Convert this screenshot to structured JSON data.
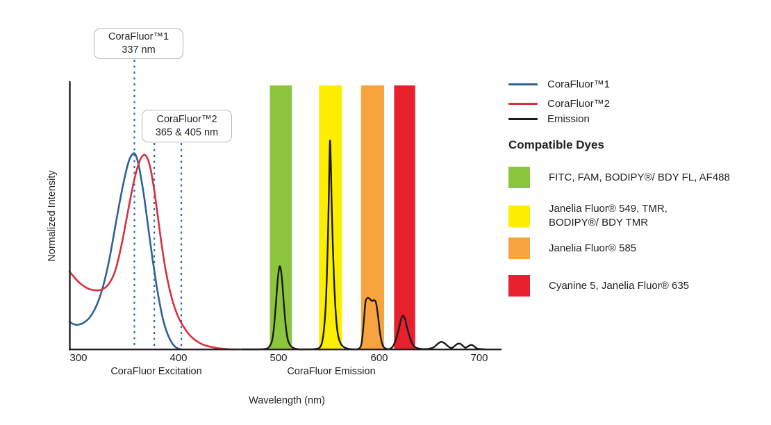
{
  "chart_data": {
    "type": "line",
    "title": "",
    "xlabel": "Wavelength (nm)",
    "ylabel": "Normalized Intensity",
    "xlim": [
      300,
      700
    ],
    "ylim": [
      0,
      1
    ],
    "grid": false,
    "x_ticks": [
      300,
      400,
      500,
      600,
      700
    ],
    "x_tick_labels": [
      "300",
      "400",
      "500",
      "600",
      "700"
    ],
    "x_section_labels": [
      {
        "label": "CoraFluor Excitation"
      },
      {
        "label": "CoraFluor Emission"
      }
    ],
    "annotations": [
      {
        "line1": "CoraFluor™1",
        "line2": "337 nm"
      },
      {
        "line1": "CoraFluor™2",
        "line2": "365 & 405 nm"
      }
    ],
    "dashed_guides": [
      {
        "nm": 355.8,
        "label_ref": "CoraFluor™1 337 nm"
      },
      {
        "nm": 375.6,
        "label_ref": "CoraFluor™2 365 nm"
      },
      {
        "nm": 402.6,
        "label_ref": "CoraFluor™2 405 nm"
      }
    ],
    "bands": [
      {
        "name": "FITC, FAM, BODIPY/ BDY FL, AF488",
        "from_nm": 491,
        "to_nm": 513,
        "color": "#8cc63f"
      },
      {
        "name": "Janelia Fluor 549, TMR, BODIPY/ BDY TMR",
        "from_nm": 540,
        "to_nm": 563,
        "color": "#fdee00"
      },
      {
        "name": "Janelia Fluor 585",
        "from_nm": 582,
        "to_nm": 605,
        "color": "#f7a440"
      },
      {
        "name": "Cyanine 5, Janelia Fluor 635",
        "from_nm": 615,
        "to_nm": 636,
        "color": "#e8202e"
      }
    ],
    "series": [
      {
        "name": "CoraFluor™1",
        "color": "#2e6296",
        "width": 2.6,
        "points": [
          [
            291,
            0.105
          ],
          [
            294,
            0.097
          ],
          [
            298,
            0.093
          ],
          [
            302,
            0.095
          ],
          [
            306,
            0.103
          ],
          [
            311,
            0.12
          ],
          [
            316,
            0.15
          ],
          [
            321,
            0.195
          ],
          [
            326,
            0.26
          ],
          [
            331,
            0.345
          ],
          [
            336,
            0.45
          ],
          [
            341,
            0.555
          ],
          [
            346,
            0.65
          ],
          [
            350,
            0.71
          ],
          [
            353,
            0.735
          ],
          [
            356,
            0.742
          ],
          [
            359,
            0.715
          ],
          [
            362,
            0.66
          ],
          [
            366,
            0.565
          ],
          [
            370,
            0.45
          ],
          [
            374,
            0.34
          ],
          [
            378,
            0.24
          ],
          [
            382,
            0.155
          ],
          [
            386,
            0.09
          ],
          [
            390,
            0.048
          ],
          [
            394,
            0.02
          ],
          [
            397,
            0.008
          ],
          [
            400,
            0.002
          ],
          [
            403,
            0
          ]
        ]
      },
      {
        "name": "CoraFluor™2",
        "color": "#d7303f",
        "width": 2.6,
        "points": [
          [
            291,
            0.295
          ],
          [
            296,
            0.272
          ],
          [
            301,
            0.252
          ],
          [
            306,
            0.238
          ],
          [
            311,
            0.228
          ],
          [
            316,
            0.224
          ],
          [
            321,
            0.224
          ],
          [
            326,
            0.232
          ],
          [
            331,
            0.252
          ],
          [
            336,
            0.29
          ],
          [
            340,
            0.345
          ],
          [
            344,
            0.415
          ],
          [
            348,
            0.495
          ],
          [
            352,
            0.575
          ],
          [
            356,
            0.648
          ],
          [
            360,
            0.703
          ],
          [
            363,
            0.728
          ],
          [
            366,
            0.737
          ],
          [
            369,
            0.722
          ],
          [
            372,
            0.682
          ],
          [
            375,
            0.617
          ],
          [
            378,
            0.537
          ],
          [
            381,
            0.452
          ],
          [
            384,
            0.37
          ],
          [
            387,
            0.3
          ],
          [
            390,
            0.243
          ],
          [
            393,
            0.196
          ],
          [
            396,
            0.158
          ],
          [
            399,
            0.128
          ],
          [
            402,
            0.104
          ],
          [
            405,
            0.085
          ],
          [
            409,
            0.063
          ],
          [
            413,
            0.046
          ],
          [
            418,
            0.031
          ],
          [
            423,
            0.02
          ],
          [
            429,
            0.012
          ],
          [
            436,
            0.006
          ],
          [
            444,
            0.002
          ],
          [
            452,
            0
          ],
          [
            460,
            0
          ]
        ]
      },
      {
        "name": "Emission",
        "color": "#1a1a1a",
        "width": 2.4,
        "points": [
          [
            463,
            0
          ],
          [
            480,
            0
          ],
          [
            487,
            0.002
          ],
          [
            490,
            0.008
          ],
          [
            493,
            0.03
          ],
          [
            495,
            0.08
          ],
          [
            497,
            0.17
          ],
          [
            499,
            0.27
          ],
          [
            501,
            0.315
          ],
          [
            503,
            0.27
          ],
          [
            505,
            0.17
          ],
          [
            507,
            0.085
          ],
          [
            509,
            0.035
          ],
          [
            512,
            0.012
          ],
          [
            516,
            0.003
          ],
          [
            521,
            0
          ],
          [
            532,
            0
          ],
          [
            538,
            0.002
          ],
          [
            541,
            0.008
          ],
          [
            543,
            0.025
          ],
          [
            545,
            0.075
          ],
          [
            547,
            0.185
          ],
          [
            549,
            0.43
          ],
          [
            550,
            0.61
          ],
          [
            551,
            0.79
          ],
          [
            552,
            0.68
          ],
          [
            553,
            0.5
          ],
          [
            555,
            0.27
          ],
          [
            557,
            0.125
          ],
          [
            559,
            0.055
          ],
          [
            562,
            0.02
          ],
          [
            566,
            0.006
          ],
          [
            571,
            0.001
          ],
          [
            577,
            0
          ],
          [
            581,
            0.006
          ],
          [
            583,
            0.035
          ],
          [
            585,
            0.115
          ],
          [
            586,
            0.165
          ],
          [
            587,
            0.188
          ],
          [
            589,
            0.195
          ],
          [
            591,
            0.19
          ],
          [
            593,
            0.183
          ],
          [
            595,
            0.186
          ],
          [
            597,
            0.176
          ],
          [
            599,
            0.125
          ],
          [
            601,
            0.06
          ],
          [
            603,
            0.022
          ],
          [
            605,
            0.007
          ],
          [
            608,
            0.001
          ],
          [
            611,
            0.002
          ],
          [
            614,
            0.012
          ],
          [
            617,
            0.04
          ],
          [
            620,
            0.082
          ],
          [
            622,
            0.115
          ],
          [
            624,
            0.128
          ],
          [
            626,
            0.113
          ],
          [
            628,
            0.082
          ],
          [
            631,
            0.042
          ],
          [
            634,
            0.016
          ],
          [
            637,
            0.006
          ],
          [
            641,
            0.002
          ],
          [
            646,
            0.001
          ],
          [
            651,
            0.003
          ],
          [
            655,
            0.009
          ],
          [
            658,
            0.019
          ],
          [
            661,
            0.027
          ],
          [
            663,
            0.028
          ],
          [
            666,
            0.021
          ],
          [
            669,
            0.011
          ],
          [
            672,
            0.005
          ],
          [
            675,
            0.011
          ],
          [
            678,
            0.02
          ],
          [
            681,
            0.021
          ],
          [
            684,
            0.012
          ],
          [
            686,
            0.006
          ],
          [
            688,
            0.009
          ],
          [
            691,
            0.016
          ],
          [
            693,
            0.016
          ],
          [
            696,
            0.008
          ],
          [
            698,
            0.003
          ],
          [
            701,
            0.001
          ],
          [
            706,
            0
          ]
        ]
      }
    ]
  },
  "legend": {
    "entries": [
      {
        "label": "CoraFluor™1",
        "color": "#2e6296"
      },
      {
        "label": "CoraFluor™2",
        "color": "#d7303f"
      },
      {
        "label": "Emission",
        "color": "#1a1a1a"
      }
    ],
    "dyes_heading": "Compatible Dyes",
    "dyes": [
      {
        "color": "#8cc63f",
        "label": "FITC, FAM, BODIPY®/ BDY FL, AF488"
      },
      {
        "color": "#fdee00",
        "label": "Janelia Fluor® 549, TMR,\nBODIPY®/ BDY TMR"
      },
      {
        "color": "#f7a440",
        "label": "Janelia Fluor® 585"
      },
      {
        "color": "#e8202e",
        "label": "Cyanine 5, Janelia Fluor® 635"
      }
    ]
  }
}
